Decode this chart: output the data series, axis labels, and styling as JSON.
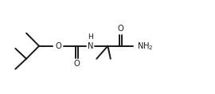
{
  "bg_color": "#ffffff",
  "line_color": "#1a1a1a",
  "line_width": 1.4,
  "font_size": 7.2,
  "xlim": [
    0,
    10
  ],
  "ylim": [
    0,
    4.5
  ],
  "figsize": [
    2.7,
    1.18
  ],
  "dpi": 100
}
